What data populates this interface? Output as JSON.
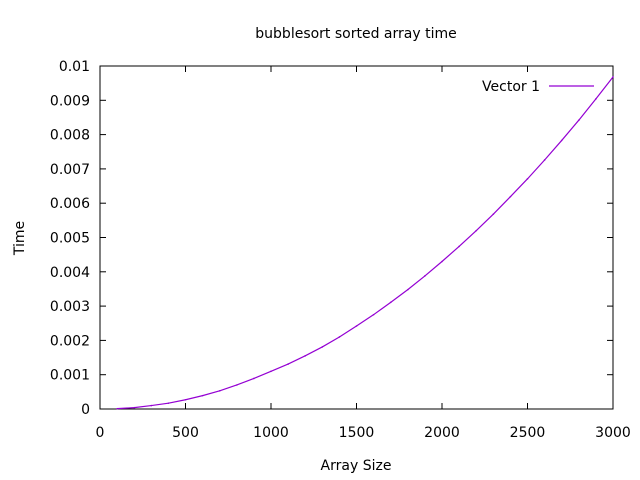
{
  "chart_data": {
    "type": "line",
    "title": "bubblesort sorted array time",
    "xlabel": "Array Size",
    "ylabel": "Time",
    "xlim": [
      0,
      3000
    ],
    "ylim": [
      0,
      0.01
    ],
    "x_ticks": [
      "0",
      "500",
      "1000",
      "1500",
      "2000",
      "2500",
      "3000"
    ],
    "y_ticks": [
      "0",
      "0.001",
      "0.002",
      "0.003",
      "0.004",
      "0.005",
      "0.006",
      "0.007",
      "0.008",
      "0.009",
      "0.01"
    ],
    "grid": false,
    "legend_position": "top-right",
    "series": [
      {
        "name": "Vector 1",
        "color": "#9400d3",
        "x": [
          100,
          200,
          300,
          400,
          500,
          600,
          700,
          800,
          900,
          1000,
          1100,
          1200,
          1300,
          1400,
          1500,
          1600,
          1700,
          1800,
          1900,
          2000,
          2100,
          2200,
          2300,
          2400,
          2500,
          2600,
          2700,
          2800,
          2900,
          3000
        ],
        "y": [
          1e-05,
          4e-05,
          0.0001,
          0.00017,
          0.00027,
          0.00039,
          0.00053,
          0.0007,
          0.00089,
          0.0011,
          0.00131,
          0.00155,
          0.00181,
          0.0021,
          0.00242,
          0.00275,
          0.00311,
          0.00348,
          0.00388,
          0.0043,
          0.00474,
          0.0052,
          0.00568,
          0.00619,
          0.00671,
          0.00726,
          0.00783,
          0.00842,
          0.00904,
          0.00968
        ]
      }
    ]
  }
}
